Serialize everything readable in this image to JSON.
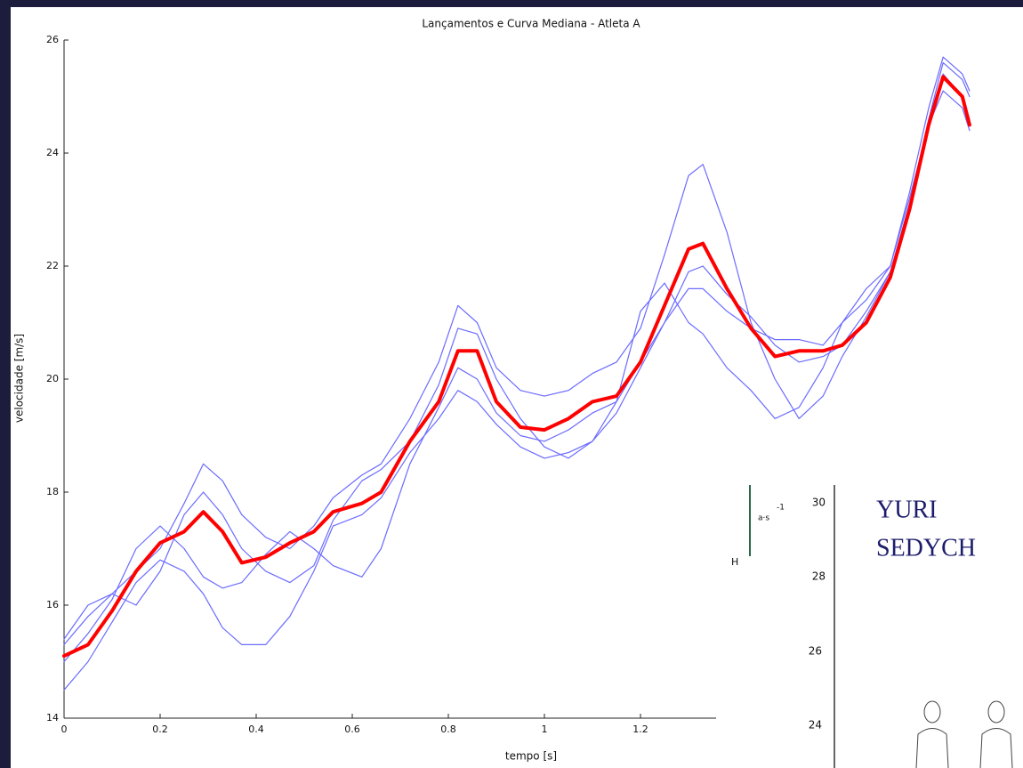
{
  "chart_data": {
    "type": "line",
    "title": "Lançamentos e Curva Mediana - Atleta A",
    "x_label": "tempo [s]",
    "y_label": "velocidade [m/s]",
    "x": [
      0,
      0.05,
      0.1,
      0.15,
      0.2,
      0.25,
      0.29,
      0.33,
      0.37,
      0.42,
      0.47,
      0.52,
      0.56,
      0.62,
      0.66,
      0.72,
      0.78,
      0.82,
      0.86,
      0.9,
      0.95,
      1,
      1.05,
      1.1,
      1.15,
      1.2,
      1.25,
      1.3,
      1.33,
      1.38,
      1.43,
      1.48,
      1.53,
      1.58,
      1.62,
      1.67,
      1.72,
      1.76,
      1.8,
      1.83,
      1.87,
      1.885
    ],
    "series": [
      {
        "color": "#6b6bff",
        "width": 1.2,
        "values": [
          15.3,
          15.8,
          16.2,
          16.6,
          17.0,
          17.8,
          18.5,
          18.2,
          17.6,
          17.2,
          17.0,
          17.4,
          17.9,
          18.3,
          18.5,
          19.3,
          20.3,
          21.3,
          21.0,
          20.2,
          19.8,
          19.7,
          19.8,
          20.1,
          20.3,
          20.9,
          22.2,
          23.6,
          23.8,
          22.6,
          21.0,
          20.0,
          19.3,
          19.7,
          20.4,
          21.1,
          21.9,
          23.1,
          24.6,
          25.6,
          25.3,
          25.0
        ]
      },
      {
        "color": "#6b6bff",
        "width": 1.2,
        "values": [
          14.5,
          15.0,
          15.7,
          16.4,
          16.8,
          16.6,
          16.2,
          15.6,
          15.3,
          15.3,
          15.8,
          16.6,
          17.4,
          17.6,
          17.9,
          18.7,
          19.3,
          19.8,
          19.6,
          19.2,
          18.8,
          18.6,
          18.7,
          18.9,
          19.4,
          20.2,
          21.0,
          21.6,
          21.6,
          21.2,
          20.9,
          20.7,
          20.7,
          20.6,
          21.0,
          21.6,
          22.0,
          23.2,
          24.5,
          25.1,
          24.8,
          24.4
        ]
      },
      {
        "color": "#6b6bff",
        "width": 1.2,
        "values": [
          15.0,
          15.5,
          16.1,
          17.0,
          17.4,
          17.0,
          16.5,
          16.3,
          16.4,
          16.9,
          17.3,
          17.0,
          16.7,
          16.5,
          17.0,
          18.5,
          19.5,
          20.2,
          20.0,
          19.4,
          19.0,
          18.9,
          19.1,
          19.4,
          19.6,
          20.3,
          21.0,
          21.9,
          22.0,
          21.5,
          21.1,
          20.6,
          20.3,
          20.4,
          20.6,
          21.2,
          21.9,
          23.0,
          24.6,
          25.4,
          25.0,
          24.6
        ]
      },
      {
        "color": "#6b6bff",
        "width": 1.2,
        "values": [
          15.4,
          16.0,
          16.2,
          16.0,
          16.6,
          17.6,
          18.0,
          17.6,
          17.0,
          16.6,
          16.4,
          16.7,
          17.5,
          18.2,
          18.4,
          18.9,
          19.9,
          20.9,
          20.8,
          20.0,
          19.3,
          18.8,
          18.6,
          18.9,
          19.6,
          21.2,
          21.7,
          21.0,
          20.8,
          20.2,
          19.8,
          19.3,
          19.5,
          20.2,
          21.0,
          21.4,
          22.0,
          23.3,
          24.8,
          25.7,
          25.4,
          25.1
        ]
      },
      {
        "color": "#ff0000",
        "width": 4,
        "values": [
          15.1,
          15.3,
          15.9,
          16.6,
          17.1,
          17.3,
          17.65,
          17.3,
          16.75,
          16.85,
          17.1,
          17.3,
          17.65,
          17.8,
          18.0,
          18.9,
          19.6,
          20.5,
          20.5,
          19.6,
          19.15,
          19.1,
          19.3,
          19.6,
          19.7,
          20.3,
          21.3,
          22.3,
          22.4,
          21.6,
          20.9,
          20.4,
          20.5,
          20.5,
          20.6,
          21.0,
          21.8,
          23.0,
          24.5,
          25.35,
          25.0,
          24.5
        ]
      }
    ],
    "xlim": [
      0,
      1.9
    ],
    "xticks": [
      0,
      0.2,
      0.4,
      0.6,
      0.8,
      1,
      1.2
    ],
    "ylim": [
      14,
      26
    ],
    "yticks": [
      14,
      16,
      18,
      20,
      22,
      24,
      26
    ]
  },
  "inset": {
    "axis_symbol": "H",
    "unit": "a·s",
    "unit_exponent": "-1",
    "ticks": [
      "30",
      "28",
      "26",
      "24"
    ],
    "name_line1": "YURI",
    "name_line2": "SEDYCH"
  }
}
